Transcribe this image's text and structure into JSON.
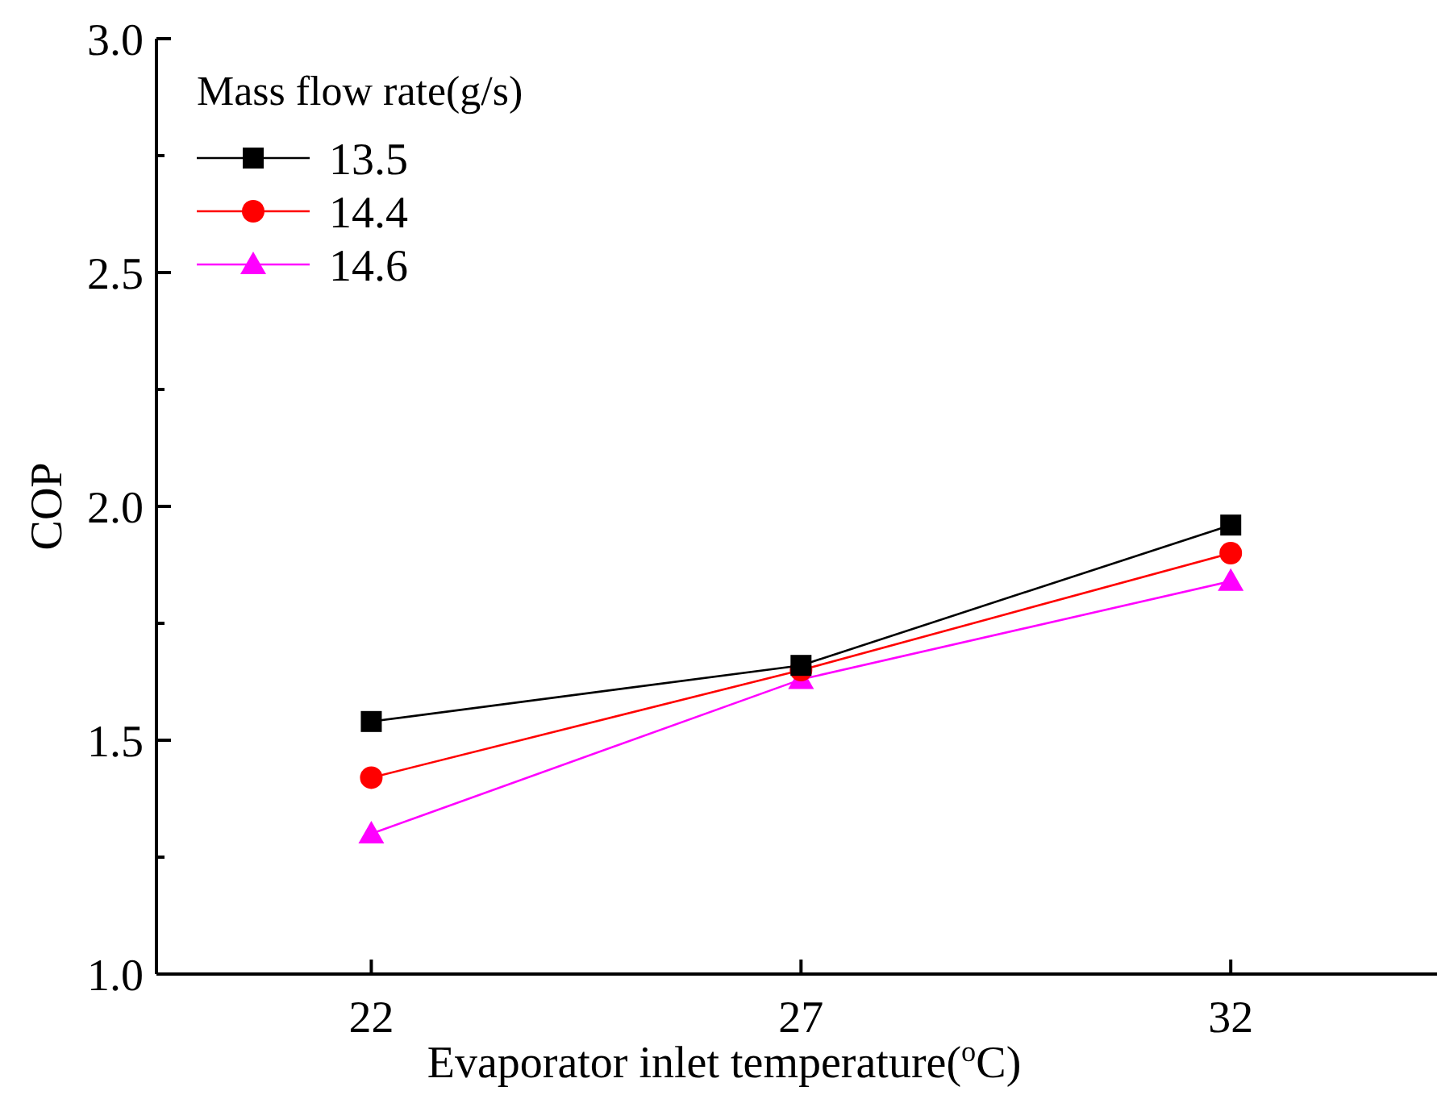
{
  "chart_data": {
    "type": "line",
    "xlabel": "Evaporator inlet temperature($^{o}$C)",
    "ylabel": "COP",
    "legend_title": "Mass flow rate(g/s)",
    "legend": "top left",
    "grid": false,
    "x": [
      22,
      27,
      32
    ],
    "xlim": [
      19.5,
      34.4
    ],
    "xticks": [
      22,
      27,
      32
    ],
    "ylim": [
      1.0,
      3.0
    ],
    "yticks": [
      {
        "value": 1,
        "label": "1.0"
      },
      {
        "value": 1.25,
        "label": null
      },
      1.5,
      {
        "value": 1.75,
        "label": null
      },
      {
        "value": 2,
        "label": "2.0"
      },
      {
        "value": 2.25,
        "label": null
      },
      2.5,
      {
        "value": 2.75,
        "label": null
      },
      {
        "value": 3,
        "label": "3.0"
      }
    ],
    "series": [
      {
        "name": "13.5",
        "color": "#000000",
        "marker": "square",
        "values": [
          1.54,
          1.66,
          1.96
        ]
      },
      {
        "name": "14.4",
        "color": "#ff0000",
        "marker": "circle",
        "values": [
          1.42,
          1.65,
          1.9
        ]
      },
      {
        "name": "14.6",
        "color": "#ff00ff",
        "marker": "triangle",
        "values": [
          1.3,
          1.63,
          1.84
        ]
      }
    ]
  }
}
